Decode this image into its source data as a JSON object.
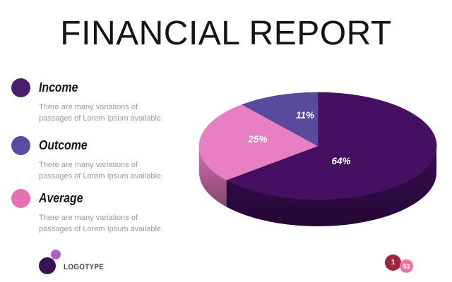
{
  "slide": {
    "title": "FINANCIAL REPORT",
    "background": "#ffffff"
  },
  "legend": {
    "items": [
      {
        "label": "Income",
        "color": "#491d6b",
        "desc_line1": "There are many variations of",
        "desc_line2": "passages of Lorem Ipsum available."
      },
      {
        "label": "Outcome",
        "color": "#5a4aa0",
        "desc_line1": "There are many variations of",
        "desc_line2": "passages of Lorem Ipsum available."
      },
      {
        "label": "Average",
        "color": "#e96fb6",
        "desc_line1": "There are many variations of",
        "desc_line2": "passages of Lorem Ipsum available."
      }
    ]
  },
  "chart_data": {
    "type": "pie",
    "style": "3d",
    "start_angle": "12 o'clock, clockwise",
    "legend_position": "left",
    "slices": [
      {
        "label": "Income",
        "value": 64,
        "display": "64%",
        "color": "#44105f",
        "side_color": "#3a0c54"
      },
      {
        "label": "Average",
        "value": 25,
        "display": "25%",
        "color": "#e77fc2",
        "side_color": "#d66fb0"
      },
      {
        "label": "Outcome",
        "value": 11,
        "display": "11%",
        "color": "#5a4a9c",
        "side_color": "#473a7e"
      }
    ],
    "label_color": "#ffffff"
  },
  "footer": {
    "logotype": {
      "text": "LOGOTYPE",
      "big_circle_color": "#3a1154",
      "small_circle_color": "#aa60c4",
      "text_color": "#47474f"
    },
    "badges": [
      {
        "text": "1",
        "color": "#a12340"
      },
      {
        "text": "53",
        "color": "#ef71a5"
      }
    ]
  }
}
